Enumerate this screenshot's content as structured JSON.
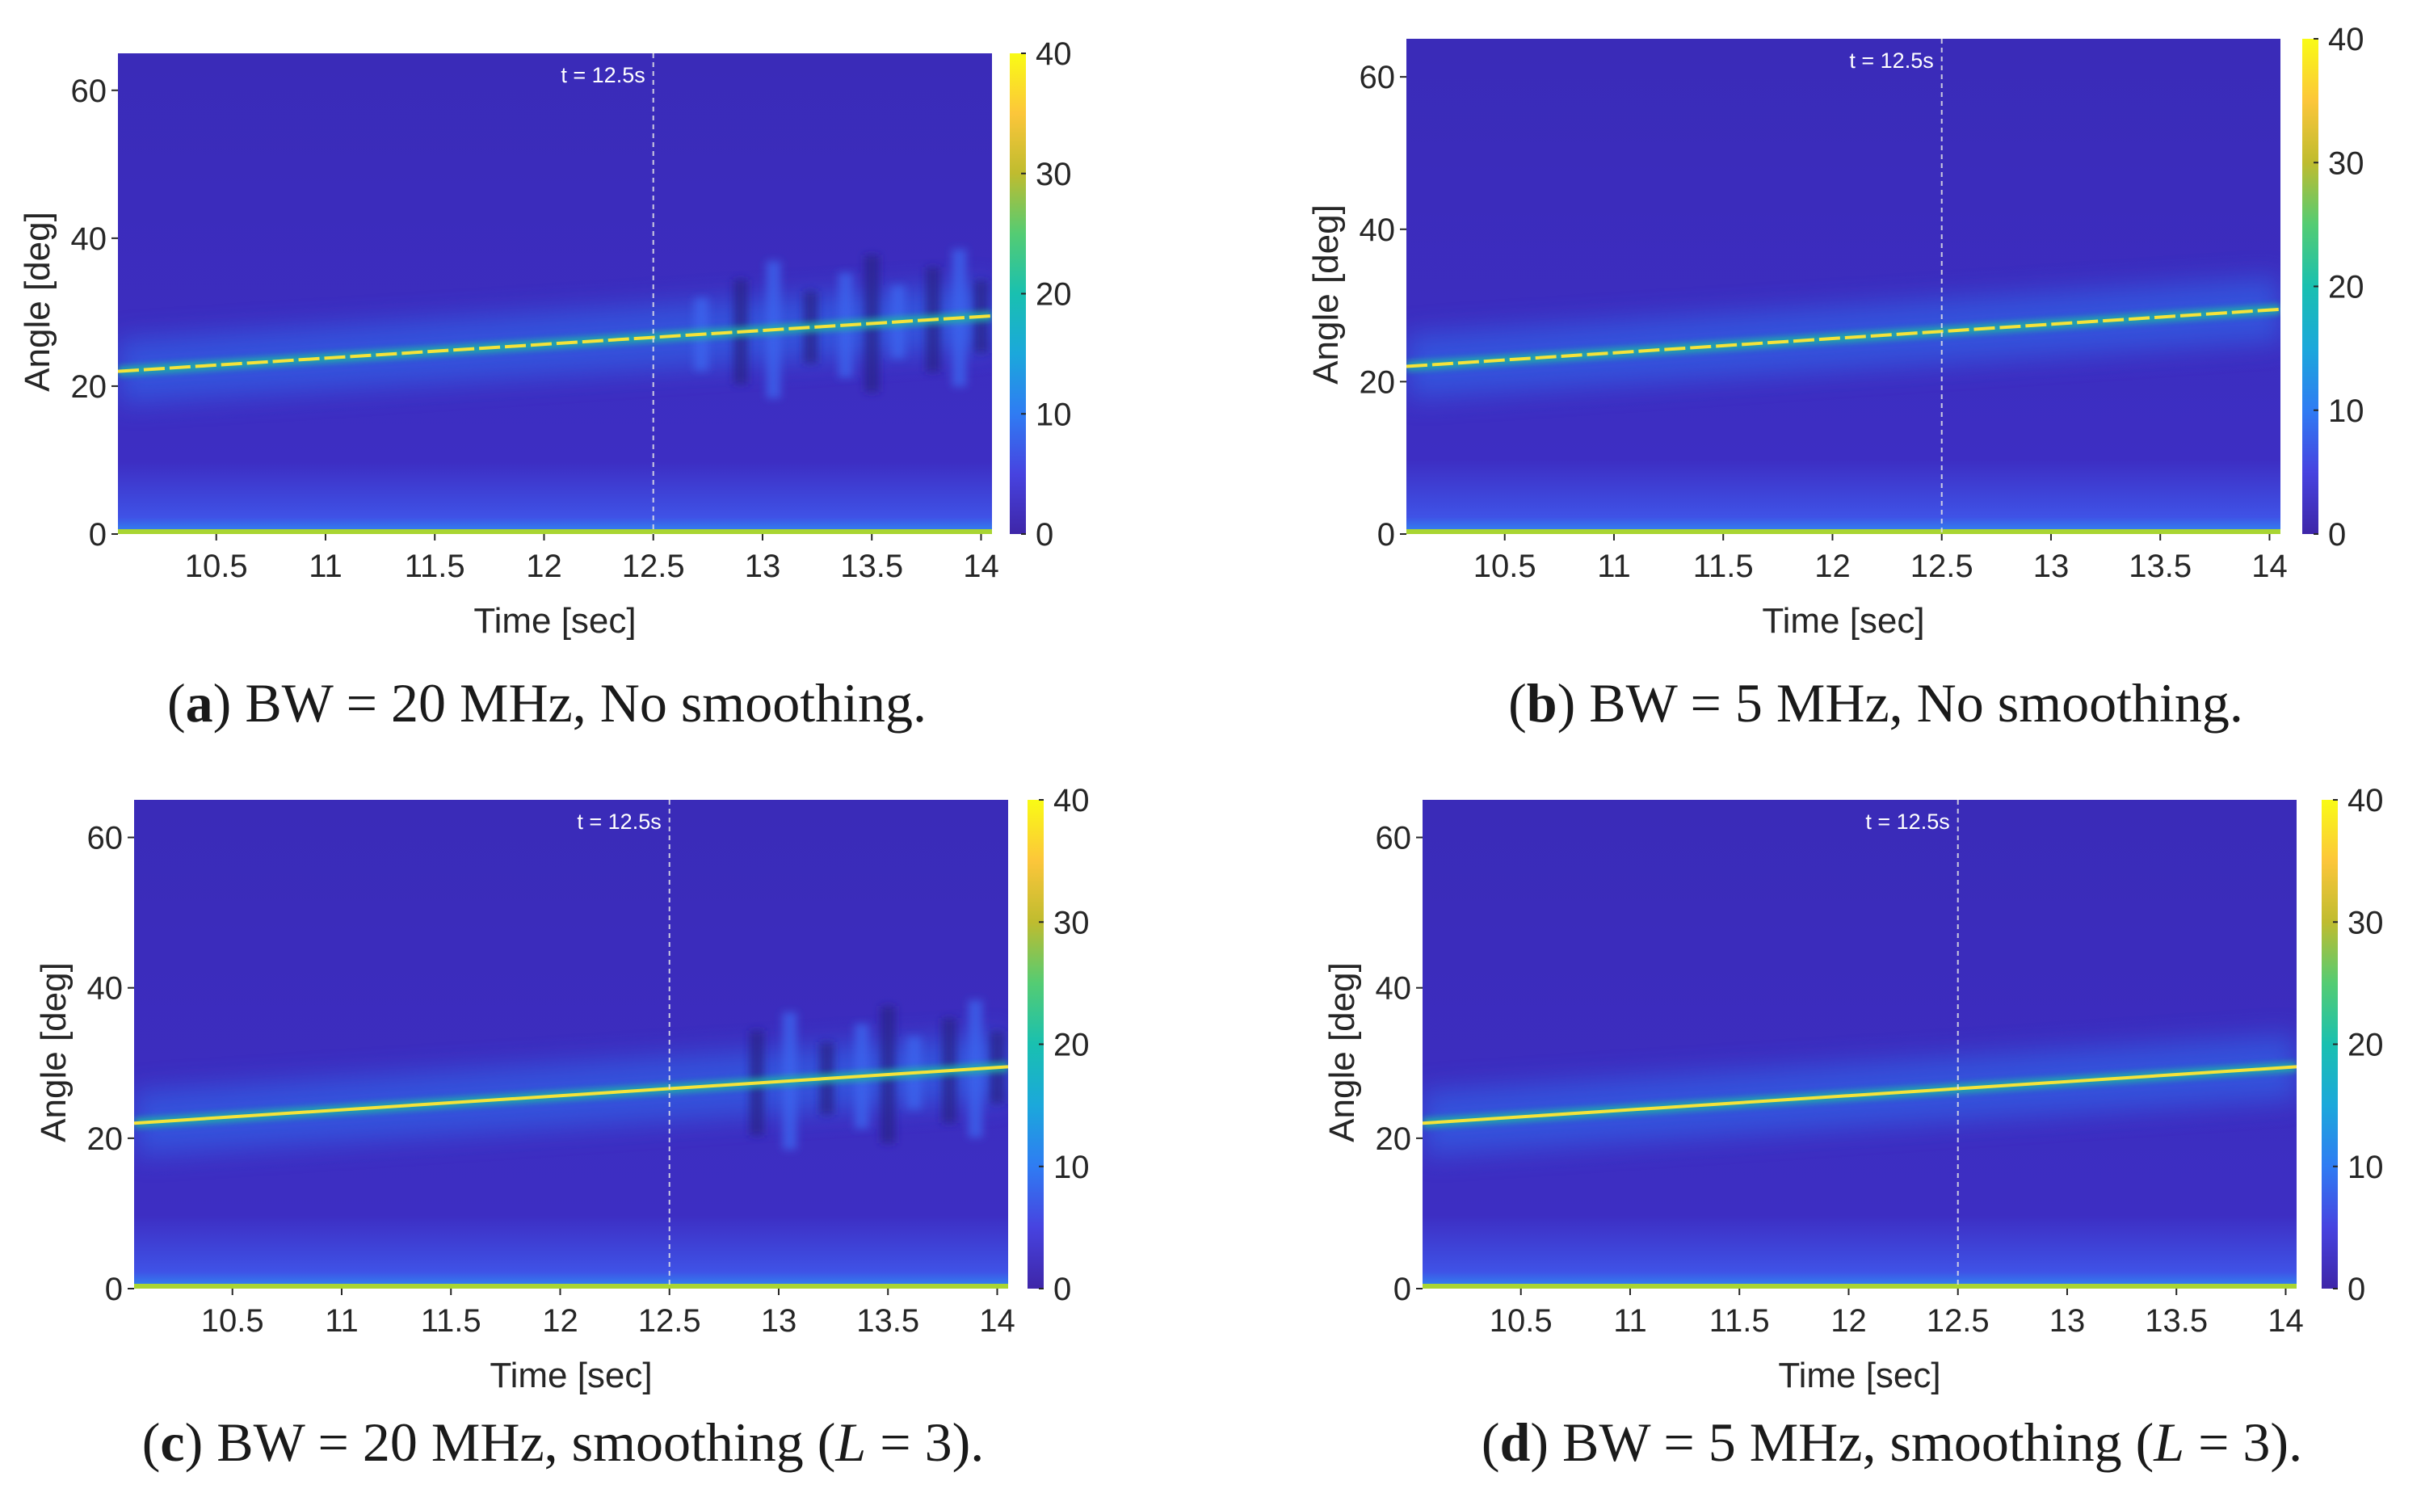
{
  "chart_data": [
    {
      "type": "heatmap",
      "panel": "a",
      "caption_label": "a",
      "caption_text": " BW = 20 MHz, No smoothing.",
      "xlabel": "Time [sec]",
      "ylabel": "Angle [deg]",
      "xlim": [
        10.05,
        14.05
      ],
      "ylim": [
        0,
        65
      ],
      "xticks": [
        "10.5",
        "11",
        "11.5",
        "12",
        "12.5",
        "13",
        "13.5",
        "14"
      ],
      "yticks": [
        "0",
        "20",
        "40",
        "60"
      ],
      "colorbar": {
        "min": 0,
        "max": 40,
        "ticks": [
          "0",
          "10",
          "20",
          "30",
          "40"
        ]
      },
      "marker": {
        "x": 12.5,
        "label": "t = 12.5s"
      },
      "track": {
        "x": [
          10.05,
          14.05
        ],
        "y": [
          22,
          29.5
        ]
      },
      "baseline_angle": 0,
      "smoothing": false,
      "dashed_track": true,
      "artifacts_after": 12.7
    },
    {
      "type": "heatmap",
      "panel": "b",
      "caption_label": "b",
      "caption_text": " BW = 5 MHz, No smoothing.",
      "xlabel": "Time [sec]",
      "ylabel": "Angle [deg]",
      "xlim": [
        10.05,
        14.05
      ],
      "ylim": [
        0,
        65
      ],
      "xticks": [
        "10.5",
        "11",
        "11.5",
        "12",
        "12.5",
        "13",
        "13.5",
        "14"
      ],
      "yticks": [
        "0",
        "20",
        "40",
        "60"
      ],
      "colorbar": {
        "min": 0,
        "max": 40,
        "ticks": [
          "0",
          "10",
          "20",
          "30",
          "40"
        ]
      },
      "marker": {
        "x": 12.5,
        "label": "t = 12.5s"
      },
      "track": {
        "x": [
          10.05,
          14.05
        ],
        "y": [
          22,
          29.5
        ]
      },
      "baseline_angle": 0,
      "smoothing": false,
      "dashed_track": true,
      "artifacts_after": null
    },
    {
      "type": "heatmap",
      "panel": "c",
      "caption_label": "c",
      "caption_text": " BW = 20 MHz, smoothing (",
      "caption_math": "L",
      "caption_tail": " = 3).",
      "xlabel": "Time [sec]",
      "ylabel": "Angle [deg]",
      "xlim": [
        10.05,
        14.05
      ],
      "ylim": [
        0,
        65
      ],
      "xticks": [
        "10.5",
        "11",
        "11.5",
        "12",
        "12.5",
        "13",
        "13.5",
        "14"
      ],
      "yticks": [
        "0",
        "20",
        "40",
        "60"
      ],
      "colorbar": {
        "min": 0,
        "max": 40,
        "ticks": [
          "0",
          "10",
          "20",
          "30",
          "40"
        ]
      },
      "marker": {
        "x": 12.5,
        "label": "t = 12.5s"
      },
      "track": {
        "x": [
          10.05,
          14.05
        ],
        "y": [
          22,
          29.5
        ]
      },
      "baseline_angle": 0,
      "smoothing": true,
      "dashed_track": false,
      "artifacts_after": 12.8
    },
    {
      "type": "heatmap",
      "panel": "d",
      "caption_label": "d",
      "caption_text": " BW = 5 MHz, smoothing (",
      "caption_math": "L",
      "caption_tail": " = 3).",
      "xlabel": "Time [sec]",
      "ylabel": "Angle [deg]",
      "xlim": [
        10.05,
        14.05
      ],
      "ylim": [
        0,
        65
      ],
      "xticks": [
        "10.5",
        "11",
        "11.5",
        "12",
        "12.5",
        "13",
        "13.5",
        "14"
      ],
      "yticks": [
        "0",
        "20",
        "40",
        "60"
      ],
      "colorbar": {
        "min": 0,
        "max": 40,
        "ticks": [
          "0",
          "10",
          "20",
          "30",
          "40"
        ]
      },
      "marker": {
        "x": 12.5,
        "label": "t = 12.5s"
      },
      "track": {
        "x": [
          10.05,
          14.05
        ],
        "y": [
          22,
          29.5
        ]
      },
      "baseline_angle": 0,
      "smoothing": true,
      "dashed_track": false,
      "artifacts_after": null
    }
  ],
  "colors": {
    "background": "#3a2bb8",
    "background_low": "#3d2ec3",
    "glow": "#2f6ff2",
    "track_core": "#f5e33a",
    "track_edge": "#1fb8a2",
    "baseline": "#a9d532",
    "marker_line": "#e6e6e6",
    "colormap": [
      "#3e26a8",
      "#4743e0",
      "#2f7cf3",
      "#1ba8db",
      "#19c0b0",
      "#54cc73",
      "#bfbc2f",
      "#fcc63a",
      "#f9fb15"
    ]
  }
}
